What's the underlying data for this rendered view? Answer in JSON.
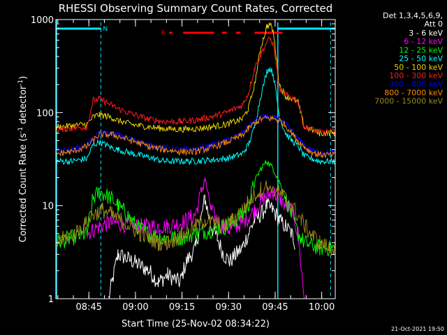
{
  "chart_data": {
    "type": "line",
    "title": "RHESSI Observing Summary Count Rates, Corrected",
    "xlabel": "Start Time (25-Nov-02 08:34:22)",
    "ylabel": "Corrected Count Rate (s⁻¹ detector⁻¹)",
    "ylabel_main": "Corrected Count Rate (s",
    "ylabel_sup1": "-1",
    "ylabel_mid": " detector",
    "ylabel_sup2": "-1",
    "ylabel_end": ")",
    "x_unit": "minutes after 08:34:22",
    "xlim": [
      0,
      90
    ],
    "ylim": [
      1,
      1000
    ],
    "yscale": "log",
    "x_ticks": [
      "08:45",
      "09:00",
      "09:15",
      "09:30",
      "09:45",
      "10:00"
    ],
    "y_ticks": [
      "1",
      "10",
      "100",
      "1000"
    ],
    "legend_header": [
      "Det 1,3,4,5,6,9,",
      "Att 0"
    ],
    "legend_position": "right",
    "footer": "21-Oct-2021 19:50",
    "flags": {
      "night_label": "N",
      "flare_label": "F",
      "night_color": "#00e5ff",
      "flare_color": "#ff0000"
    },
    "series": [
      {
        "name": "3 - 6 keV",
        "color": "#ffffff",
        "t": [
          0,
          10,
          14,
          17,
          20,
          25,
          30,
          33,
          36,
          40,
          42,
          45,
          48,
          50,
          52,
          54,
          56,
          58,
          60,
          62,
          64,
          66,
          68,
          70,
          72,
          74,
          76,
          77,
          78,
          80,
          85,
          90
        ],
        "y": [
          null,
          null,
          null,
          1.0,
          3.0,
          2.5,
          2.0,
          1.5,
          1.8,
          1.5,
          2.5,
          3.5,
          12,
          6.0,
          4.5,
          3.0,
          2.5,
          3.0,
          3.5,
          5.0,
          7.0,
          8.0,
          10,
          9.0,
          7.0,
          6.0,
          5.0,
          4.0,
          null,
          null,
          null,
          null
        ]
      },
      {
        "name": "6 - 12 keV",
        "color": "#ff00ff",
        "t": [
          0,
          10,
          14,
          17,
          20,
          25,
          30,
          33,
          36,
          40,
          42,
          45,
          48,
          50,
          52,
          54,
          56,
          58,
          60,
          62,
          64,
          66,
          68,
          70,
          72,
          74,
          76,
          78,
          80,
          82,
          85,
          90
        ],
        "y": [
          null,
          5.0,
          6.0,
          6.5,
          6.5,
          6.0,
          6.0,
          6.0,
          6.0,
          6.5,
          7.0,
          8.0,
          20,
          9.0,
          7.0,
          6.0,
          5.5,
          6.0,
          6.5,
          7.5,
          9.0,
          11,
          13,
          14,
          12,
          10,
          9.0,
          5.0,
          1.0,
          null,
          null,
          null
        ]
      },
      {
        "name": "12 - 25 keV",
        "color": "#00ff00",
        "t": [
          0,
          5,
          10,
          12,
          14,
          16,
          18,
          20,
          23,
          26,
          30,
          35,
          40,
          45,
          50,
          55,
          60,
          62,
          64,
          66,
          68,
          70,
          72,
          74,
          76,
          78,
          80,
          85,
          90
        ],
        "y": [
          4.0,
          4.5,
          5.0,
          12,
          14,
          13,
          12,
          10,
          8.0,
          6.0,
          5.0,
          4.5,
          4.5,
          5.0,
          5.5,
          6.0,
          8.0,
          10,
          18,
          25,
          30,
          25,
          18,
          12,
          8.0,
          5.0,
          4.0,
          3.5,
          3.5
        ]
      },
      {
        "name": "25 - 50 keV",
        "color": "#00ffff",
        "t": [
          0,
          5,
          10,
          12,
          14,
          16,
          18,
          20,
          25,
          30,
          35,
          40,
          45,
          50,
          55,
          60,
          62,
          64,
          66,
          68,
          69,
          70,
          71,
          72,
          74,
          76,
          78,
          80,
          85,
          90
        ],
        "y": [
          30,
          30,
          32,
          45,
          48,
          45,
          42,
          40,
          36,
          33,
          30,
          30,
          30,
          31,
          32,
          36,
          45,
          70,
          150,
          280,
          300,
          260,
          160,
          90,
          60,
          50,
          44,
          34,
          30,
          30
        ]
      },
      {
        "name": "50 - 100 keV",
        "color": "#e8d400",
        "t": [
          0,
          5,
          10,
          12,
          14,
          16,
          18,
          20,
          25,
          30,
          35,
          40,
          45,
          50,
          55,
          60,
          62,
          64,
          66,
          68,
          69,
          70,
          71,
          72,
          74,
          76,
          78,
          80,
          85,
          90
        ],
        "y": [
          70,
          72,
          75,
          90,
          95,
          92,
          88,
          82,
          74,
          70,
          67,
          66,
          67,
          70,
          75,
          85,
          110,
          200,
          500,
          850,
          880,
          750,
          400,
          200,
          150,
          140,
          130,
          70,
          60,
          60
        ]
      },
      {
        "name": "100 - 300 keV",
        "color": "#ff1a1a",
        "t": [
          0,
          5,
          10,
          12,
          14,
          16,
          18,
          20,
          25,
          30,
          35,
          40,
          45,
          50,
          55,
          60,
          62,
          64,
          66,
          68,
          69,
          70,
          71,
          72,
          74,
          76,
          78,
          80,
          85,
          90
        ],
        "y": [
          65,
          68,
          70,
          135,
          140,
          130,
          120,
          110,
          95,
          85,
          80,
          80,
          83,
          90,
          100,
          120,
          160,
          300,
          420,
          580,
          620,
          550,
          320,
          180,
          155,
          145,
          130,
          70,
          62,
          62
        ]
      },
      {
        "name": "300 - 800 keV",
        "color": "#0000ff",
        "t": [
          0,
          5,
          10,
          14,
          18,
          22,
          26,
          30,
          35,
          40,
          45,
          50,
          55,
          60,
          62,
          64,
          66,
          68,
          70,
          72,
          74,
          76,
          78,
          80,
          82,
          84,
          86,
          90
        ],
        "y": [
          38,
          40,
          45,
          60,
          60,
          55,
          50,
          45,
          42,
          40,
          40,
          44,
          50,
          60,
          70,
          80,
          88,
          90,
          88,
          85,
          75,
          62,
          52,
          45,
          40,
          38,
          37,
          37
        ]
      },
      {
        "name": "800 - 7000 keV",
        "color": "#ff8c00",
        "t": [
          0,
          5,
          10,
          14,
          18,
          22,
          26,
          30,
          35,
          40,
          45,
          50,
          55,
          60,
          62,
          64,
          66,
          68,
          70,
          72,
          74,
          76,
          78,
          80,
          82,
          84,
          86,
          90
        ],
        "y": [
          36,
          38,
          43,
          58,
          58,
          53,
          48,
          43,
          40,
          38,
          38,
          42,
          48,
          57,
          67,
          77,
          85,
          87,
          86,
          83,
          73,
          60,
          50,
          43,
          38,
          36,
          35,
          35
        ]
      },
      {
        "name": "7000 - 15000 keV",
        "color": "#9b8a1c",
        "t": [
          0,
          3,
          6,
          9,
          12,
          15,
          18,
          21,
          24,
          27,
          30,
          33,
          36,
          39,
          42,
          45,
          48,
          51,
          54,
          57,
          60,
          63,
          66,
          68,
          70,
          73,
          76,
          79,
          82,
          85,
          88,
          90
        ],
        "y": [
          4.0,
          4.5,
          5.0,
          6.0,
          8.0,
          9.0,
          8.0,
          7.0,
          6.0,
          5.0,
          4.5,
          4.0,
          4.0,
          4.5,
          5.0,
          6.0,
          7.0,
          6.5,
          6.0,
          7.0,
          9.0,
          12,
          15,
          16,
          15,
          13,
          10,
          7.0,
          5.0,
          4.0,
          3.5,
          3.5
        ]
      }
    ]
  }
}
